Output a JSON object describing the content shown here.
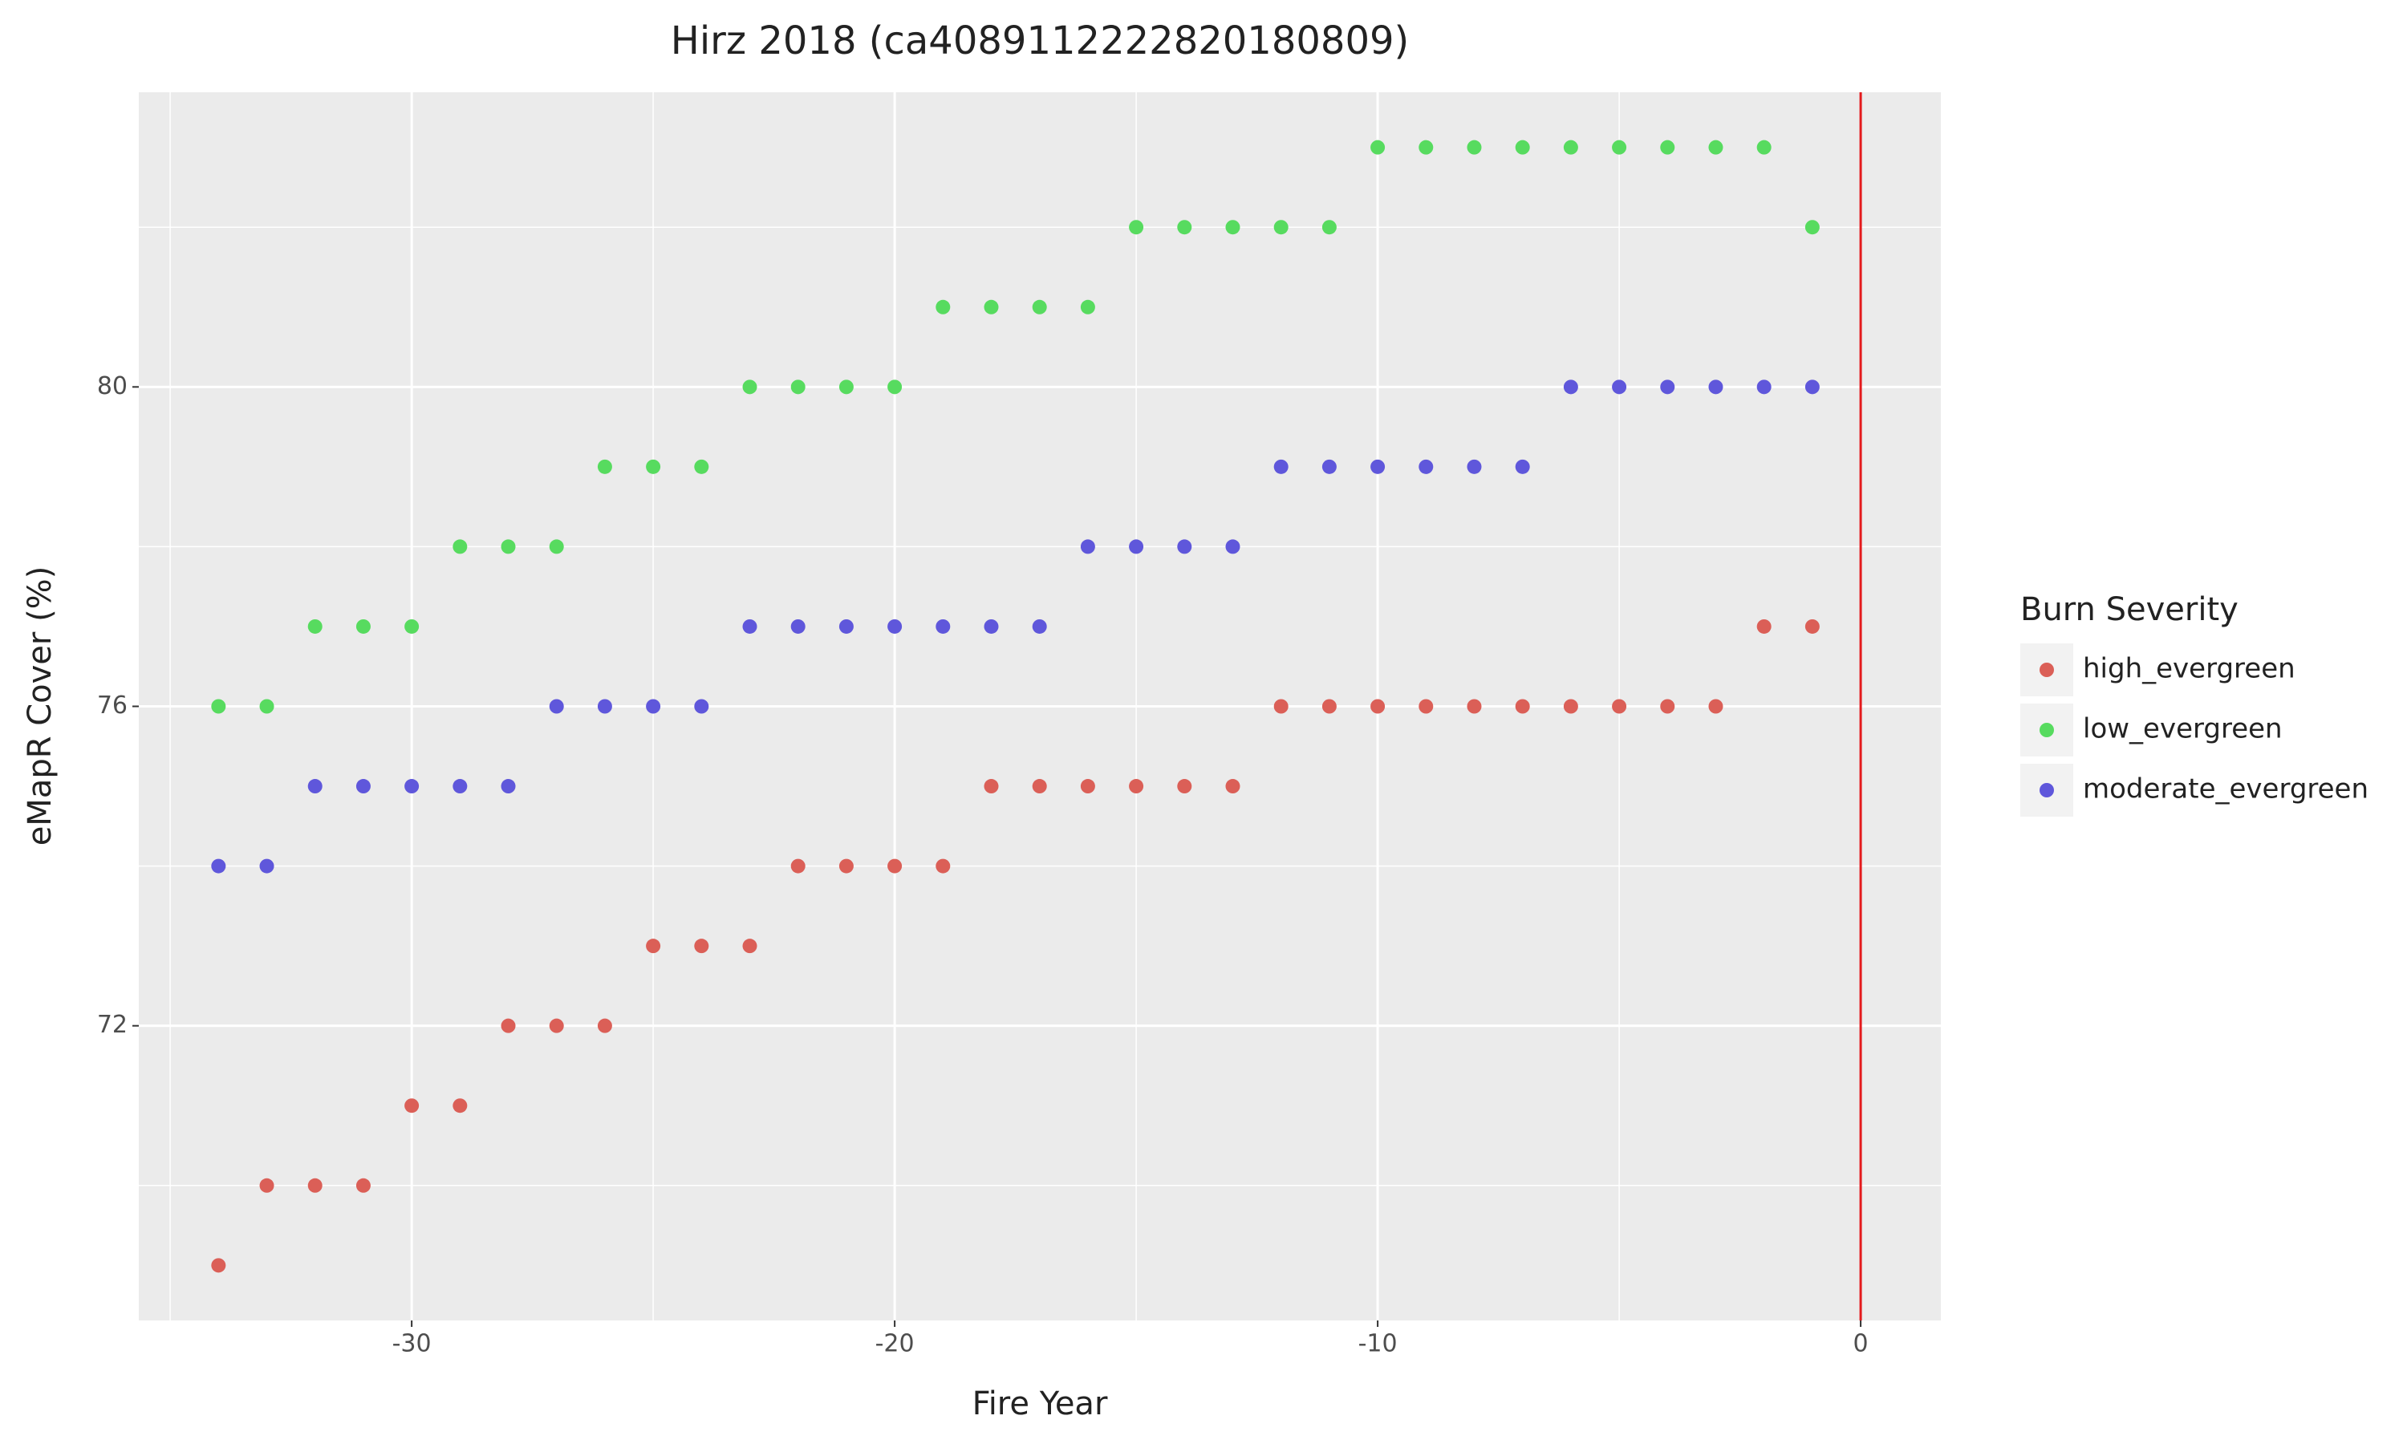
{
  "chart_data": {
    "type": "scatter",
    "title": "Hirz 2018 (ca4089112222820180809)",
    "x_label": "Fire Year",
    "y_label": "eMapR Cover (%)",
    "legend_title": "Burn Severity",
    "legend_position": "right",
    "grid": true,
    "x": [
      -34,
      -33,
      -32,
      -31,
      -30,
      -29,
      -28,
      -27,
      -26,
      -25,
      -24,
      -23,
      -22,
      -21,
      -20,
      -19,
      -18,
      -17,
      -16,
      -15,
      -14,
      -13,
      -12,
      -11,
      -10,
      -9,
      -8,
      -7,
      -6,
      -5,
      -4,
      -3,
      -2,
      -1
    ],
    "series": [
      {
        "name": "high_evergreen",
        "color": "#db5f57",
        "values": [
          69,
          70,
          70,
          70,
          71,
          71,
          72,
          72,
          72,
          73,
          73,
          73,
          74,
          74,
          74,
          74,
          75,
          75,
          75,
          75,
          75,
          75,
          76,
          76,
          76,
          76,
          76,
          76,
          76,
          76,
          76,
          76,
          77,
          77
        ]
      },
      {
        "name": "low_evergreen",
        "color": "#57db5f",
        "values": [
          76,
          76,
          77,
          77,
          77,
          78,
          78,
          78,
          79,
          79,
          79,
          80,
          80,
          80,
          80,
          81,
          81,
          81,
          81,
          82,
          82,
          82,
          82,
          82,
          83,
          83,
          83,
          83,
          83,
          83,
          83,
          83,
          83,
          82
        ]
      },
      {
        "name": "moderate_evergreen",
        "color": "#5f57db",
        "values": [
          74,
          74,
          75,
          75,
          75,
          75,
          75,
          76,
          76,
          76,
          76,
          77,
          77,
          77,
          77,
          77,
          77,
          77,
          78,
          78,
          78,
          78,
          79,
          79,
          79,
          79,
          79,
          79,
          80,
          80,
          80,
          80,
          80,
          80
        ]
      }
    ],
    "xlim": [
      -35.65,
      1.66
    ],
    "ylim": [
      68.31,
      83.69
    ],
    "xticks": [
      -30,
      -20,
      -10,
      0
    ],
    "yticks": [
      72,
      76,
      80
    ],
    "xminor": [
      -35,
      -25,
      -15,
      -5
    ],
    "yminor": [
      70,
      74,
      78,
      82
    ],
    "vline": 0,
    "vline_color": "#e31a1c"
  }
}
